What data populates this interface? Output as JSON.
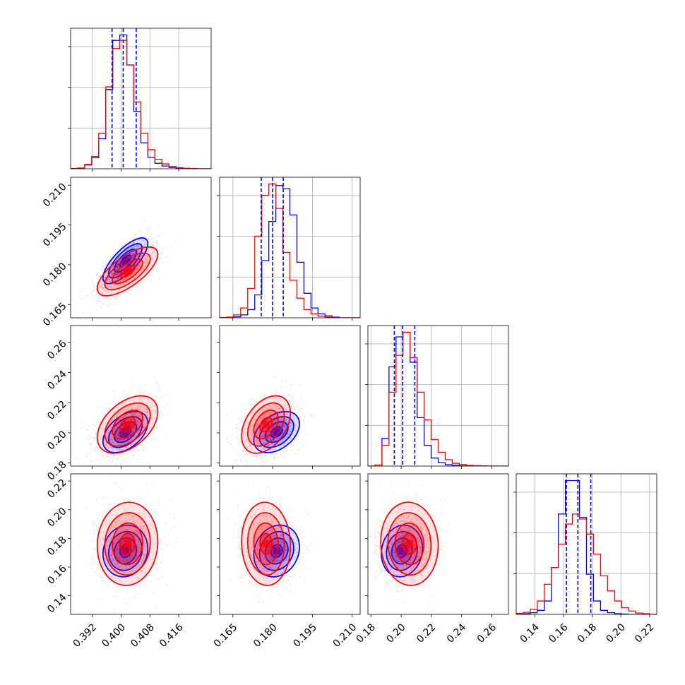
{
  "chart_data": {
    "type": "corner",
    "grid": true,
    "parameters": [
      {
        "range": [
          0.386,
          0.425
        ],
        "ticks": [
          0.392,
          0.4,
          0.408,
          0.416
        ],
        "tick_labels": [
          "0.392",
          "0.400",
          "0.408",
          "0.416"
        ]
      },
      {
        "range": [
          0.16,
          0.213
        ],
        "ticks": [
          0.165,
          0.18,
          0.195,
          0.21
        ],
        "tick_labels": [
          "0.165",
          "0.180",
          "0.195",
          "0.210"
        ]
      },
      {
        "range": [
          0.178,
          0.271
        ],
        "ticks": [
          0.18,
          0.2,
          0.22,
          0.24,
          0.26
        ],
        "tick_labels": [
          "0.18",
          "0.20",
          "0.22",
          "0.24",
          "0.26"
        ]
      },
      {
        "range": [
          0.127,
          0.225
        ],
        "ticks": [
          0.14,
          0.16,
          0.18,
          0.2,
          0.22
        ],
        "tick_labels": [
          "0.14",
          "0.16",
          "0.18",
          "0.20",
          "0.22"
        ]
      }
    ],
    "series": [
      {
        "color": "#0000ff",
        "mean": [
          0.4012,
          0.1815,
          0.2005,
          0.1712
        ],
        "sd": [
          0.0031,
          0.0043,
          0.0068,
          0.009
        ],
        "corr": [
          [
            1,
            0.75,
            0.45,
            0.1
          ],
          [
            0.75,
            1,
            0.4,
            0.15
          ],
          [
            0.45,
            0.4,
            1,
            0.1
          ],
          [
            0.1,
            0.15,
            0.1,
            1
          ]
        ],
        "quantiles": [
          [
            0.3975,
            0.4006,
            0.4042
          ],
          [
            0.1757,
            0.18,
            0.184
          ],
          [
            0.1955,
            0.201,
            0.209
          ],
          [
            0.162,
            0.17,
            0.179
          ]
        ],
        "hist": [
          [
            0,
            2,
            14,
            40,
            110,
            290,
            470,
            490,
            380,
            210,
            95,
            42,
            20,
            10,
            5,
            3,
            1,
            0,
            0,
            0
          ],
          [
            0,
            0,
            3,
            9,
            25,
            70,
            175,
            295,
            405,
            395,
            315,
            170,
            75,
            30,
            12,
            6,
            2,
            0,
            0,
            0
          ],
          [
            0,
            0,
            120,
            430,
            560,
            580,
            450,
            210,
            90,
            35,
            15,
            6,
            3,
            1,
            0,
            0,
            0,
            0,
            0,
            0
          ],
          [
            1,
            2,
            5,
            12,
            40,
            140,
            300,
            400,
            400,
            290,
            120,
            40,
            12,
            5,
            2,
            1,
            0,
            0,
            0,
            0
          ]
        ]
      },
      {
        "color": "#ff0000",
        "mean": [
          0.4018,
          0.1775,
          0.2055,
          0.1762
        ],
        "sd": [
          0.0042,
          0.0046,
          0.0095,
          0.0145
        ],
        "corr": [
          [
            1,
            0.7,
            0.45,
            0.05
          ],
          [
            0.7,
            1,
            0.4,
            -0.05
          ],
          [
            0.45,
            0.4,
            1,
            -0.05
          ],
          [
            0.05,
            -0.05,
            -0.05,
            1
          ]
        ],
        "quantiles": [
          [
            0.3975,
            0.4006,
            0.4042
          ],
          [
            0.1757,
            0.18,
            0.184
          ],
          [
            0.1955,
            0.201,
            0.209
          ],
          [
            0.162,
            0.17,
            0.179
          ]
        ],
        "hist": [
          [
            1,
            3,
            16,
            45,
            130,
            300,
            440,
            470,
            380,
            245,
            130,
            70,
            35,
            18,
            8,
            4,
            2,
            1,
            0,
            0
          ],
          [
            1,
            2,
            9,
            30,
            90,
            250,
            375,
            410,
            335,
            200,
            115,
            60,
            25,
            12,
            5,
            2,
            1,
            0,
            0,
            0
          ],
          [
            0,
            5,
            90,
            320,
            480,
            580,
            470,
            320,
            200,
            115,
            60,
            28,
            12,
            7,
            3,
            2,
            1,
            0,
            0,
            0
          ],
          [
            3,
            6,
            15,
            40,
            90,
            140,
            210,
            270,
            300,
            285,
            240,
            180,
            115,
            70,
            40,
            20,
            10,
            4,
            2,
            0
          ]
        ]
      }
    ]
  }
}
